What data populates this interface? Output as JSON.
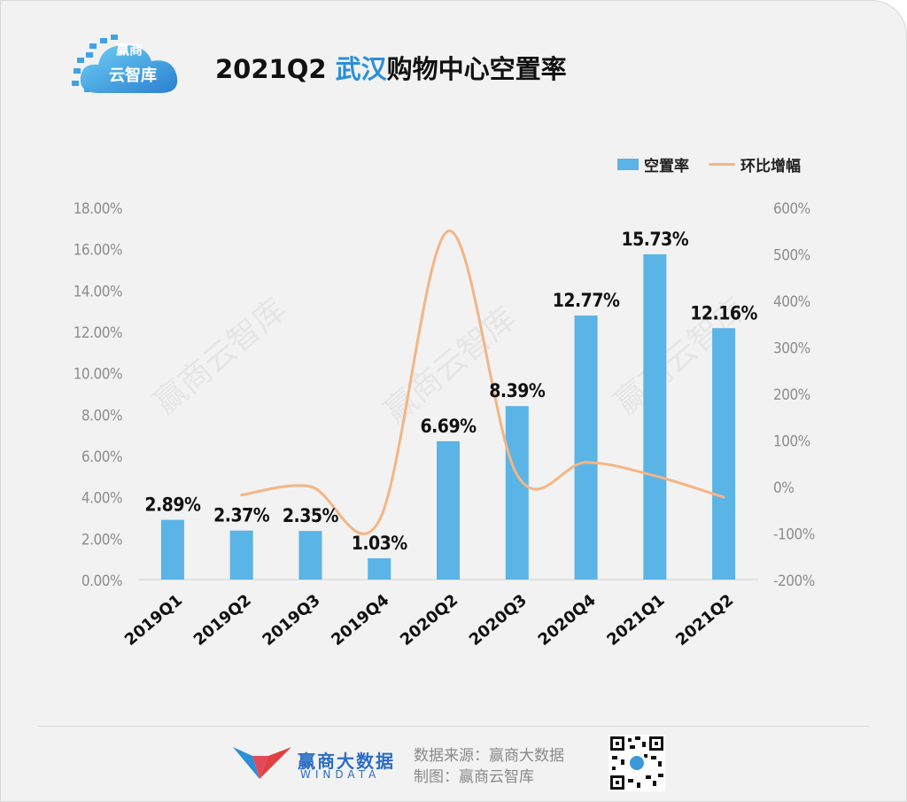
{
  "header": {
    "logo": {
      "line1": "赢商",
      "line2": "云智库"
    },
    "title_prefix": "2021Q2 ",
    "title_highlight": "武汉",
    "title_suffix": "购物中心空置率"
  },
  "legend": {
    "bar_label": "空置率",
    "line_label": "环比增幅"
  },
  "colors": {
    "bar": "#5ab4e5",
    "line": "#f4b584",
    "title_highlight": "#2a8fd8",
    "brand": "#2b6cc7"
  },
  "chart_data": {
    "type": "bar",
    "categories": [
      "2019Q1",
      "2019Q2",
      "2019Q3",
      "2019Q4",
      "2020Q2",
      "2020Q3",
      "2020Q4",
      "2021Q1",
      "2021Q2"
    ],
    "series": [
      {
        "name": "空置率",
        "type": "bar",
        "axis": "left",
        "values": [
          2.89,
          2.37,
          2.35,
          1.03,
          6.69,
          8.39,
          12.77,
          15.73,
          12.16
        ],
        "labels": [
          "2.89%",
          "2.37%",
          "2.35%",
          "1.03%",
          "6.69%",
          "8.39%",
          "12.77%",
          "15.73%",
          "12.16%"
        ]
      },
      {
        "name": "环比增幅",
        "type": "line",
        "axis": "right",
        "values": [
          null,
          -18,
          0,
          -73,
          549,
          25,
          52,
          23,
          -23
        ]
      }
    ],
    "y_left": {
      "range": [
        0,
        18
      ],
      "ticks": [
        0,
        2,
        4,
        6,
        8,
        10,
        12,
        14,
        16,
        18
      ],
      "tick_labels": [
        "0.00%",
        "2.00%",
        "4.00%",
        "6.00%",
        "8.00%",
        "10.00%",
        "12.00%",
        "14.00%",
        "16.00%",
        "18.00%"
      ]
    },
    "y_right": {
      "range": [
        -200,
        600
      ],
      "ticks": [
        -200,
        -100,
        0,
        100,
        200,
        300,
        400,
        500,
        600
      ],
      "tick_labels": [
        "-200%",
        "-100%",
        "0%",
        "100%",
        "200%",
        "300%",
        "400%",
        "500%",
        "600%"
      ]
    },
    "grid": false,
    "legend_position": "top-right"
  },
  "watermark": "赢商云智库",
  "footer": {
    "brand_cn": "赢商大数据",
    "brand_en": "WINDATA",
    "source_line": "数据来源：赢商大数据",
    "made_by_line": "制图：赢商云智库"
  }
}
